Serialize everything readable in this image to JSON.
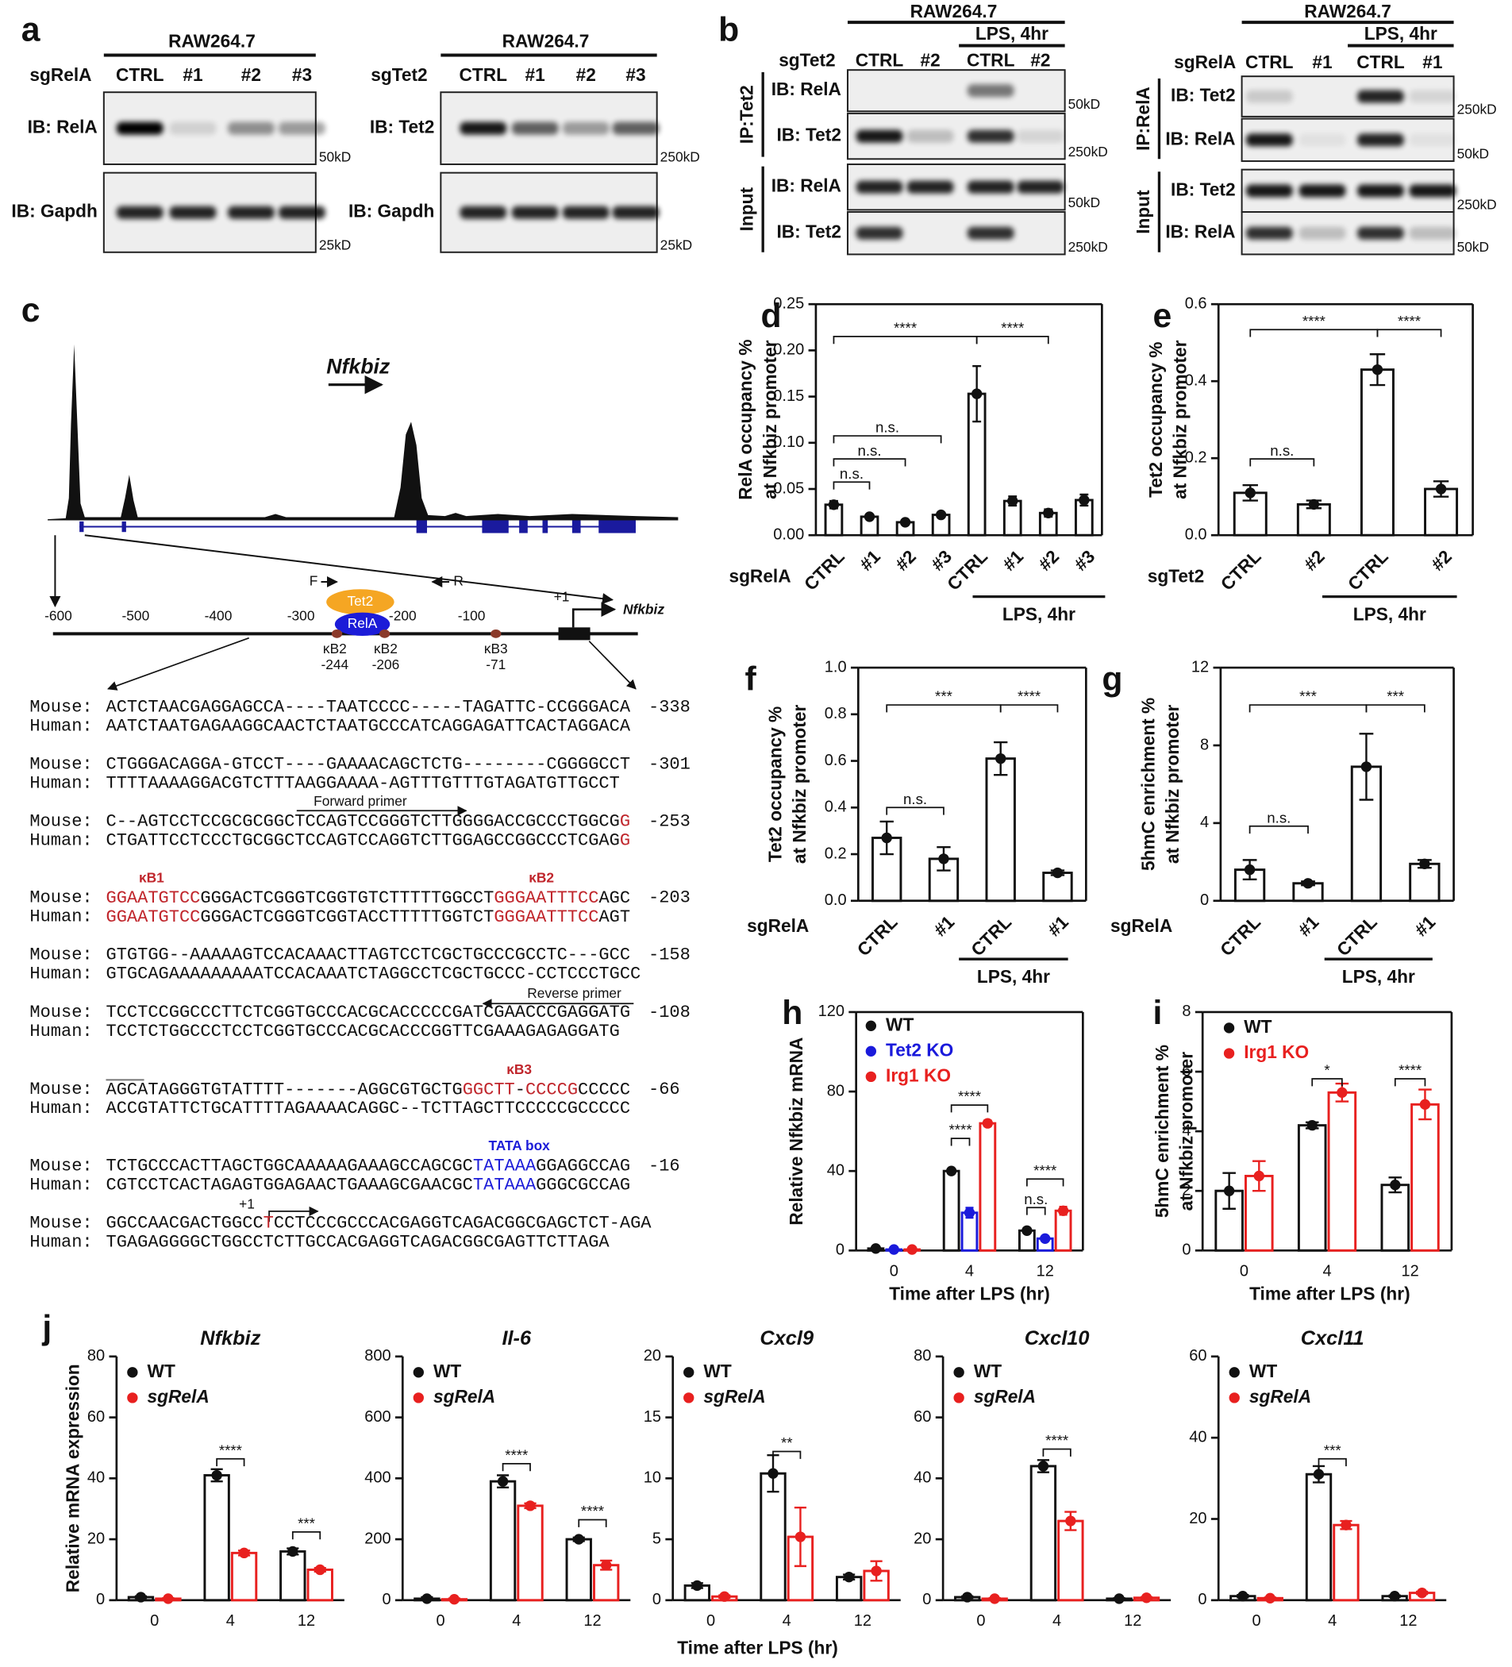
{
  "blots": [
    {
      "panel": "a",
      "header": "RAW264.7",
      "sg": "sgRelA",
      "columns": [
        "CTRL",
        "#1",
        "#2",
        "#3"
      ],
      "rows": [
        {
          "label": "IB: RelA",
          "marker": "50kD"
        },
        {
          "label": "IB: Gapdh",
          "marker": "25kD"
        }
      ]
    },
    {
      "header": "RAW264.7",
      "sg": "sgTet2",
      "columns": [
        "CTRL",
        "#1",
        "#2",
        "#3"
      ],
      "rows": [
        {
          "label": "IB: Tet2",
          "marker": "250kD"
        },
        {
          "label": "IB: Gapdh",
          "marker": "25kD"
        }
      ]
    },
    {
      "panel": "b",
      "header": "RAW264.7",
      "treatment": "LPS, 4hr",
      "sg": "sgTet2",
      "columns": [
        "CTRL",
        "#2",
        "CTRL",
        "#2"
      ],
      "sections": [
        {
          "label": "IP:Tet2",
          "rows": [
            {
              "label": "IB: RelA",
              "marker": "50kD"
            },
            {
              "label": "IB: Tet2",
              "marker": "250kD"
            }
          ]
        },
        {
          "label": "Input",
          "rows": [
            {
              "label": "IB: RelA",
              "marker": "50kD"
            },
            {
              "label": "IB: Tet2",
              "marker": "250kD"
            }
          ]
        }
      ]
    },
    {
      "header": "RAW264.7",
      "treatment": "LPS, 4hr",
      "sg": "sgRelA",
      "columns": [
        "CTRL",
        "#1",
        "CTRL",
        "#1"
      ],
      "sections": [
        {
          "label": "IP:RelA",
          "rows": [
            {
              "label": "IB: Tet2",
              "marker": "250kD"
            },
            {
              "label": "IB: RelA",
              "marker": "50kD"
            }
          ]
        },
        {
          "label": "Input",
          "rows": [
            {
              "label": "IB: Tet2",
              "marker": "250kD"
            },
            {
              "label": "IB: RelA",
              "marker": "50kD"
            }
          ]
        }
      ]
    }
  ],
  "promoter": {
    "panel": "c",
    "gene": "Nfkbiz",
    "positions": [
      "-600",
      "-500",
      "-400",
      "-300",
      "-200",
      "-100",
      "+1"
    ],
    "proteins": [
      "Tet2",
      "RelA"
    ],
    "primers": [
      "F",
      "R"
    ],
    "sites": [
      {
        "name": "κB2",
        "pos": "-244"
      },
      {
        "name": "κB2",
        "pos": "-206"
      },
      {
        "name": "κB3",
        "pos": "-71"
      }
    ]
  },
  "alignment": {
    "species": [
      "Mouse:",
      "Human:"
    ],
    "notes": [
      "Forward primer",
      "Reverse primer",
      "κB1",
      "κB2",
      "κB3",
      "TATA box",
      "+1"
    ],
    "blocks": [
      {
        "mouse": "ACTCTAACGAGGAGCCA----TAATCCCC-----TAGATTC-CCGGGACA",
        "human": "AATCTAATGAGAAGGCAACTCTAATGCCCATCAGGAGATTCACTAGGACA",
        "position": "-338"
      },
      {
        "mouse": "CTGGGACAGGA-GTCCT----GAAAACAGCTCTG--------CGGGGCCT",
        "human": "TTTTAAAAGGACGTCTTTAAGGAAAA-AGTTTGTTTGTAGATGTTGCCT",
        "position": "-301"
      },
      {
        "mouse": "C--AGTCCTCCGCGCGGCTCCAGTCCGGGTCTTGGGGACCGCCCTGGCGG",
        "human": "CTGATTCCTCCCTGCGGCTCCAGTCCAGGTCTTGGAGCCGGCCCTCGAGG",
        "position": "-253"
      },
      {
        "mouse": "GGAATGTCCGGGACTCGGGTCGGTGTCTTTTTGGCCTGGGAATTTCCAGC",
        "human": "GGAATGTCCGGGACTCGGGTCGGTACCTTTTTGGTCTGGGAATTTCCAGT",
        "position": "-203"
      },
      {
        "mouse": "GTGTGG--AAAAAGTCCACAAACTTAGTCCTCGCTGCCCGCCTC---GCC",
        "human": "GTGCAGAAAAAAAAATCCACAAATCTAGGCCTCGCTGCCC-CCTCCCTGCC",
        "position": "-158"
      },
      {
        "mouse": "TCCTCCGGCCCTTCTCGGTGCCCACGCACCCCCGATCGAACCCGAGGATG",
        "human": "TCCTCTGGCCCTCCTCGGTGCCCACGCACCCGGTTCGAAAGAGAGGATG",
        "position": "-108"
      },
      {
        "mouse": "AGCATAGGGTGTATTTT-------AGGCGTGCTGGGCTT-CCCCGCCCCC",
        "human": "ACCGTATTCTGCATTTTAGAAAACAGGC--TCTTAGCTTCCCCCGCCCCC",
        "position": "-66"
      },
      {
        "mouse": "TCTGCCCACTTAGCTGGCAAAAAGAAAGCCAGCGCTATAAAGGAGGCCAG",
        "human": "CGTCCTCACTAGAGTGGAGAACTGAAAGCGAACGCTATAAAGGGCGCCAG",
        "position": "-16"
      },
      {
        "mouse": "GGCCAACGACTGGCCTCCTCCCGCCCACGAGGTCAGACGGCGAGCTCT-AGA",
        "human": "TGAGAGGGGCTGGCCTCTTGCCACGAGGTCAGACGGCGAGTTCTTAGA"
      }
    ]
  },
  "chart_data": [
    {
      "type": "bar",
      "panel": "d",
      "ylabel": [
        "RelA occupancy %",
        "at Nfkbiz promoter"
      ],
      "xrow_label": "sgRelA",
      "group_label": "LPS, 4hr",
      "categories": [
        "CTRL",
        "#1",
        "#2",
        "#3",
        "CTRL",
        "#1",
        "#2",
        "#3"
      ],
      "values": [
        0.033,
        0.02,
        0.014,
        0.022,
        0.153,
        0.037,
        0.024,
        0.038
      ],
      "errors": [
        0.004,
        0.002,
        0.002,
        0.002,
        0.03,
        0.005,
        0.004,
        0.006
      ],
      "color": "#111111",
      "ylim": [
        0,
        0.25
      ],
      "yticks": [
        {
          "value": 0,
          "label": "0.00"
        },
        0.05,
        {
          "value": 0.1,
          "label": "0.10"
        },
        0.15,
        {
          "value": 0.2,
          "label": "0.20"
        },
        0.25
      ],
      "annotations": [
        "****",
        "****",
        "n.s.",
        "n.s.",
        "n.s."
      ]
    },
    {
      "type": "bar",
      "panel": "e",
      "ylabel": [
        "Tet2 occupancy %",
        "at Nfkbiz promoter"
      ],
      "xrow_label": "sgTet2",
      "group_label": "LPS, 4hr",
      "categories": [
        "CTRL",
        "#2",
        "CTRL",
        "#2"
      ],
      "values": [
        0.11,
        0.08,
        0.43,
        0.12
      ],
      "errors": [
        0.02,
        0.01,
        0.04,
        0.02
      ],
      "color": "#111111",
      "ylim": [
        0,
        0.6
      ],
      "yticks": [
        {
          "value": 0,
          "label": "0.0"
        },
        0.2,
        0.4,
        0.6
      ],
      "annotations": [
        "****",
        "****",
        "n.s."
      ]
    },
    {
      "type": "bar",
      "panel": "f",
      "ylabel": [
        "Tet2 occupancy %",
        "at Nfkbiz promoter"
      ],
      "xrow_label": "sgRelA",
      "group_label": "LPS, 4hr",
      "categories": [
        "CTRL",
        "#1",
        "CTRL",
        "#1"
      ],
      "values": [
        0.27,
        0.18,
        0.61,
        0.12
      ],
      "errors": [
        0.07,
        0.05,
        0.07,
        0.01
      ],
      "color": "#111111",
      "ylim": [
        0,
        1
      ],
      "yticks": [
        {
          "value": 0,
          "label": "0.0"
        },
        0.2,
        0.4,
        0.6,
        0.8,
        {
          "value": 1,
          "label": "1.0"
        }
      ],
      "annotations": [
        "***",
        "****",
        "n.s."
      ]
    },
    {
      "type": "bar",
      "panel": "g",
      "ylabel": [
        "5hmC enrichment %",
        "at Nfkbiz promoter"
      ],
      "xrow_label": "sgRelA",
      "group_label": "LPS, 4hr",
      "categories": [
        "CTRL",
        "#1",
        "CTRL",
        "#1"
      ],
      "values": [
        1.6,
        0.9,
        6.9,
        1.9
      ],
      "errors": [
        0.5,
        0.1,
        1.7,
        0.2
      ],
      "color": "#111111",
      "ylim": [
        0,
        12
      ],
      "yticks": [
        0,
        4,
        8,
        12
      ],
      "annotations": [
        "***",
        "***",
        "n.s."
      ]
    },
    {
      "type": "bar",
      "panel": "h",
      "ylabel": [
        "Relative Nfkbiz mRNA"
      ],
      "xlabel": "Time after LPS (hr)",
      "categories": [
        "0",
        "4",
        "12"
      ],
      "series": [
        {
          "name": "WT",
          "color": "#111111",
          "values": [
            1,
            40,
            10
          ],
          "errors": [
            0.2,
            1,
            1
          ]
        },
        {
          "name": "Tet2 KO",
          "color": "#1a1adb",
          "values": [
            0.5,
            19,
            6
          ],
          "errors": [
            0.2,
            2.5,
            0.7
          ]
        },
        {
          "name": "Irg1 KO",
          "color": "#e8201f",
          "values": [
            0.5,
            64,
            20
          ],
          "errors": [
            0.2,
            1.5,
            2
          ]
        }
      ],
      "ylim": [
        0,
        120
      ],
      "yticks": [
        0,
        40,
        80,
        120
      ],
      "annotations": [
        "****",
        "****",
        "n.s.",
        "****"
      ]
    },
    {
      "type": "bar",
      "panel": "i",
      "ylabel": [
        "5hmC enrichment %",
        "at Nfkbiz promoter"
      ],
      "xlabel": "Time after LPS (hr)",
      "categories": [
        "0",
        "4",
        "12"
      ],
      "series": [
        {
          "name": "WT",
          "color": "#111111",
          "values": [
            2,
            4.2,
            2.2
          ],
          "errors": [
            0.6,
            0.1,
            0.25
          ]
        },
        {
          "name": "Irg1 KO",
          "color": "#e8201f",
          "values": [
            2.5,
            5.3,
            4.9
          ],
          "errors": [
            0.5,
            0.3,
            0.5
          ]
        }
      ],
      "ylim": [
        0,
        8
      ],
      "yticks": [
        0,
        2,
        4,
        6,
        8
      ],
      "annotations": [
        "*",
        "****"
      ]
    },
    {
      "type": "bar",
      "panel": "j",
      "title": "Nfkbiz",
      "ylabel": [
        "Relative mRNA expression"
      ],
      "categories": [
        "0",
        "4",
        "12"
      ],
      "series": [
        {
          "name": "WT",
          "color": "#111111",
          "values": [
            1,
            41,
            16
          ],
          "errors": [
            0.3,
            2,
            1
          ]
        },
        {
          "name": "sgRelA",
          "color": "#e8201f",
          "values": [
            0.5,
            15.5,
            10
          ],
          "errors": [
            0.2,
            0.8,
            0.6
          ]
        }
      ],
      "ylim": [
        0,
        80
      ],
      "yticks": [
        0,
        20,
        40,
        60,
        80
      ],
      "annotations": [
        "****",
        "***"
      ]
    },
    {
      "type": "bar",
      "title": "Il-6",
      "categories": [
        "0",
        "4",
        "12"
      ],
      "series": [
        {
          "name": "WT",
          "color": "#111111",
          "values": [
            5,
            390,
            200
          ],
          "errors": [
            5,
            20,
            6
          ]
        },
        {
          "name": "sgRelA",
          "color": "#e8201f",
          "values": [
            3,
            310,
            115
          ],
          "errors": [
            3,
            8,
            15
          ]
        }
      ],
      "ylim": [
        0,
        800
      ],
      "yticks": [
        0,
        200,
        400,
        600,
        800
      ],
      "annotations": [
        "****",
        "****"
      ]
    },
    {
      "type": "bar",
      "title": "Cxcl9",
      "xlabel": "Time after LPS (hr)",
      "categories": [
        "0",
        "4",
        "12"
      ],
      "series": [
        {
          "name": "WT",
          "color": "#111111",
          "values": [
            1.2,
            10.4,
            1.9
          ],
          "errors": [
            0.2,
            1.5,
            0.2
          ]
        },
        {
          "name": "sgRelA",
          "color": "#e8201f",
          "values": [
            0.3,
            5.2,
            2.4
          ],
          "errors": [
            0.1,
            2.4,
            0.8
          ]
        }
      ],
      "ylim": [
        0,
        20
      ],
      "yticks": [
        0,
        5,
        10,
        15,
        20
      ],
      "annotations": [
        "**"
      ]
    },
    {
      "type": "bar",
      "title": "Cxcl10",
      "categories": [
        "0",
        "4",
        "12"
      ],
      "series": [
        {
          "name": "WT",
          "color": "#111111",
          "values": [
            1,
            44,
            0.5
          ],
          "errors": [
            0.3,
            2,
            0.2
          ]
        },
        {
          "name": "sgRelA",
          "color": "#e8201f",
          "values": [
            0.5,
            26,
            0.8
          ],
          "errors": [
            0.2,
            3,
            0.2
          ]
        }
      ],
      "ylim": [
        0,
        80
      ],
      "yticks": [
        0,
        20,
        40,
        60,
        80
      ],
      "annotations": [
        "****"
      ]
    },
    {
      "type": "bar",
      "title": "Cxcl11",
      "categories": [
        "0",
        "4",
        "12"
      ],
      "series": [
        {
          "name": "WT",
          "color": "#111111",
          "values": [
            1,
            31,
            1
          ],
          "errors": [
            0.3,
            2,
            0.2
          ]
        },
        {
          "name": "sgRelA",
          "color": "#e8201f",
          "values": [
            0.5,
            18.5,
            1.8
          ],
          "errors": [
            0.2,
            1,
            0.3
          ]
        }
      ],
      "ylim": [
        0,
        60
      ],
      "yticks": [
        0,
        20,
        40,
        60
      ],
      "annotations": [
        "***"
      ]
    }
  ]
}
